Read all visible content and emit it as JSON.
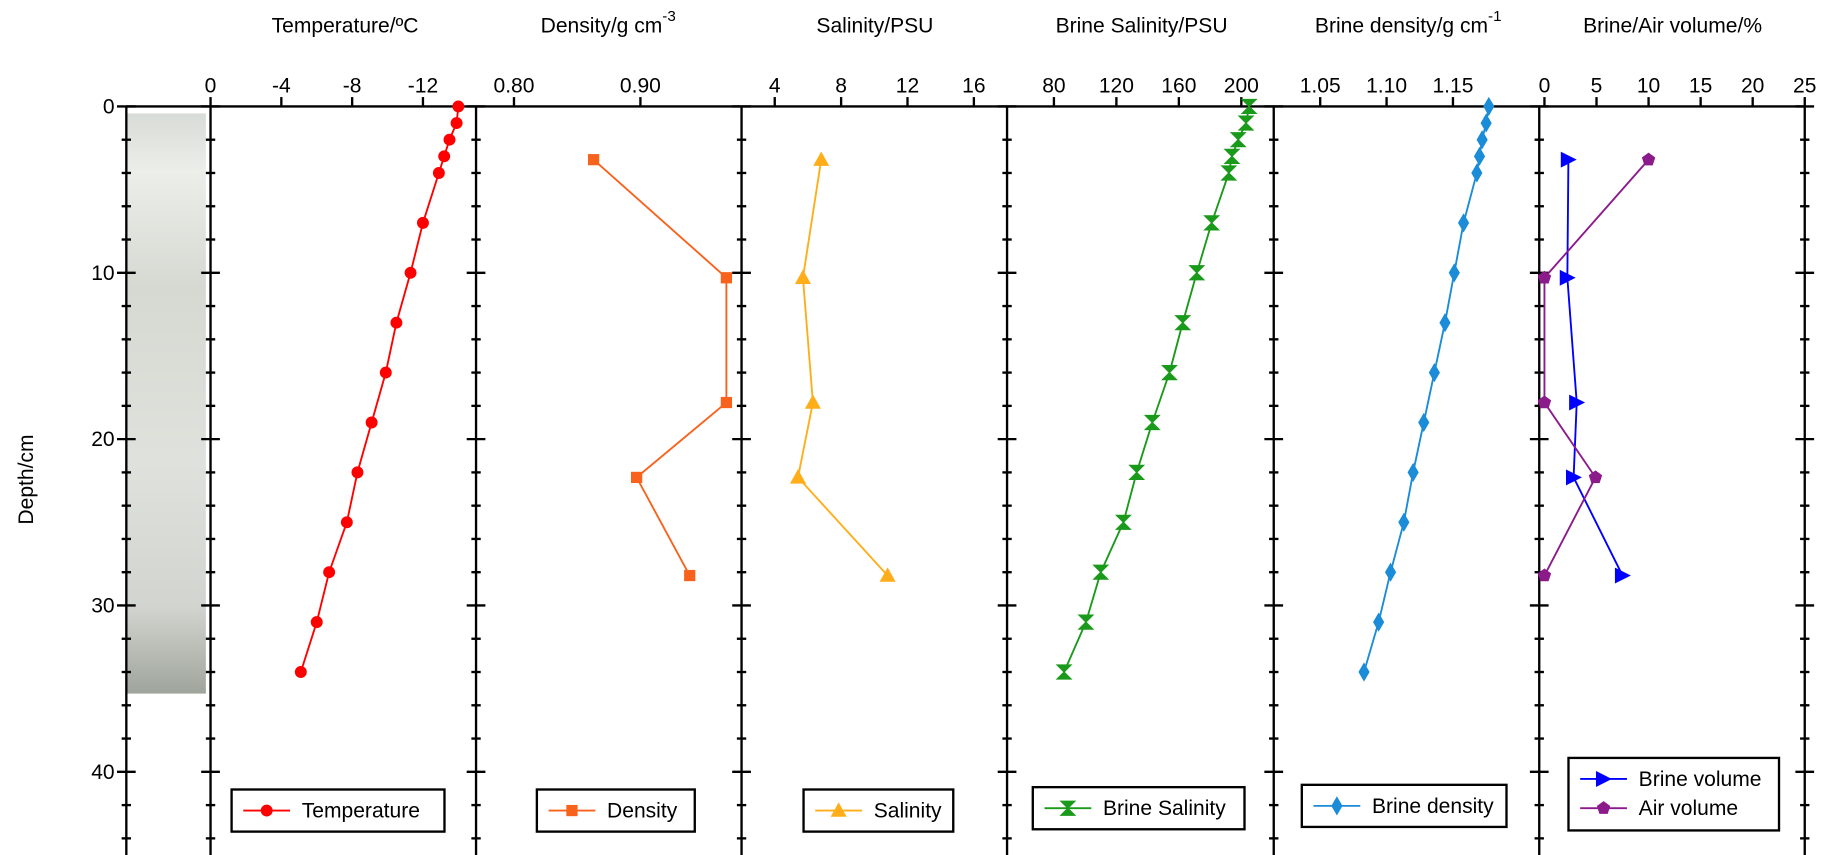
{
  "depth_axis": {
    "label": "Depth/cm",
    "ylim": [
      0,
      45
    ],
    "yticks": [
      0,
      10,
      20,
      30,
      40
    ],
    "minor_yticks": [
      2,
      4,
      6,
      8,
      12,
      14,
      16,
      18,
      22,
      24,
      26,
      28,
      32,
      34,
      36,
      38,
      42,
      44
    ]
  },
  "chart_data": [
    {
      "type": "line",
      "title": "Temperature/ºC",
      "xlim": [
        0,
        -15
      ],
      "xticks": [
        0,
        -4,
        -8,
        -12
      ],
      "series": [
        {
          "name": "Temperature",
          "color": "#ff0000",
          "marker": "circle",
          "y": [
            0,
            1,
            2,
            3,
            4,
            7,
            10,
            13,
            16,
            19,
            22,
            25,
            28,
            31,
            34
          ],
          "values": [
            -14,
            -13.9,
            -13.5,
            -13.2,
            -12.9,
            -12,
            -11.3,
            -10.5,
            -9.9,
            -9.1,
            -8.3,
            -7.7,
            -6.7,
            -6,
            -5.1
          ]
        }
      ]
    },
    {
      "type": "line",
      "title": "Density/g cm",
      "title_superscript": "-3",
      "xlim": [
        0.77,
        0.98
      ],
      "xticks": [
        {
          "value": 0.8,
          "label": "0.80"
        },
        {
          "value": 0.9,
          "label": "0.90"
        }
      ],
      "series": [
        {
          "name": "Density",
          "color": "#f9621c",
          "marker": "square",
          "y": [
            3.2,
            10.3,
            17.8,
            22.3,
            28.2
          ],
          "values": [
            0.863,
            0.968,
            0.968,
            0.897,
            0.939
          ]
        }
      ]
    },
    {
      "type": "line",
      "title": "Salinity/PSU",
      "xlim": [
        2,
        18
      ],
      "xticks": [
        4,
        8,
        12,
        16
      ],
      "series": [
        {
          "name": "Salinity",
          "color": "#ffae1a",
          "marker": "triangle",
          "y": [
            3.2,
            10.3,
            17.8,
            22.3,
            28.2
          ],
          "values": [
            6.8,
            5.7,
            6.3,
            5.4,
            10.8
          ]
        }
      ]
    },
    {
      "type": "line",
      "title": "Brine Salinity/PSU",
      "xlim": [
        50,
        220
      ],
      "xticks": [
        80,
        120,
        160,
        200
      ],
      "series": [
        {
          "name": "Brine Salinity",
          "color": "#1a9a1a",
          "marker": "hourglass",
          "y": [
            0,
            1,
            2,
            3,
            4,
            7,
            10,
            13,
            16,
            19,
            22,
            25,
            28,
            31,
            34
          ],
          "values": [
            205,
            203,
            198,
            194,
            192,
            181,
            171.5,
            162.5,
            154,
            143,
            133,
            124.5,
            110,
            100.5,
            86.5
          ]
        }
      ]
    },
    {
      "type": "line",
      "title": "Brine density/g cm",
      "title_superscript": "-1",
      "xlim": [
        1.015,
        1.215
      ],
      "xticks": [
        1.05,
        {
          "value": 1.1,
          "label": "1.10"
        },
        1.15
      ],
      "series": [
        {
          "name": "Brine density",
          "color": "#1a8cd8",
          "marker": "diamond",
          "y": [
            0,
            1,
            2,
            3,
            4,
            7,
            10,
            13,
            16,
            19,
            22,
            25,
            28,
            31,
            34
          ],
          "values": [
            1.177,
            1.175,
            1.172,
            1.17,
            1.168,
            1.158,
            1.151,
            1.144,
            1.136,
            1.128,
            1.12,
            1.113,
            1.103,
            1.094,
            1.083
          ]
        }
      ]
    },
    {
      "type": "line",
      "title": "Brine/Air volume/%",
      "xlim": [
        -0.5,
        25
      ],
      "xticks": [
        0,
        5,
        10,
        15,
        20,
        25
      ],
      "series": [
        {
          "name": "Brine volume",
          "color": "#0000ff",
          "marker": "right-triangle",
          "y": [
            3.2,
            10.3,
            17.8,
            22.3,
            28.2
          ],
          "values": [
            2.3,
            2.2,
            3.1,
            2.8,
            7.5
          ]
        },
        {
          "name": "Air volume",
          "color": "#8b1a8b",
          "marker": "pentagon",
          "y": [
            3.2,
            10.3,
            17.8,
            22.3,
            28.2
          ],
          "values": [
            10,
            0,
            0,
            4.9,
            0
          ]
        }
      ]
    }
  ]
}
